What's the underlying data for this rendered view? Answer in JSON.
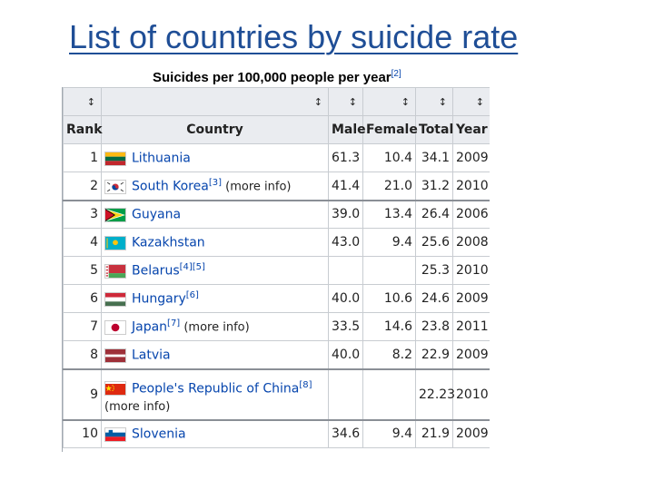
{
  "title": "List of countries by suicide rate",
  "caption": {
    "text": "Suicides per 100,000 people per year",
    "ref": "[2]"
  },
  "columns": [
    "Rank",
    "Country",
    "Male",
    "Female",
    "Total",
    "Year"
  ],
  "sort_arrow": "↕",
  "rows": [
    {
      "rank": "1",
      "country": "Lithuania",
      "refs": "",
      "more": "",
      "male": "61.3",
      "female": "10.4",
      "total": "34.1",
      "year": "2009",
      "flag": "lithuania-flag"
    },
    {
      "rank": "2",
      "country": "South Korea",
      "refs": "[3]",
      "more": " (more info)",
      "male": "41.4",
      "female": "21.0",
      "total": "31.2",
      "year": "2010",
      "flag": "south-korea-flag"
    },
    {
      "rank": "3",
      "country": "Guyana",
      "refs": "",
      "more": "",
      "male": "39.0",
      "female": "13.4",
      "total": "26.4",
      "year": "2006",
      "flag": "guyana-flag"
    },
    {
      "rank": "4",
      "country": "Kazakhstan",
      "refs": "",
      "more": "",
      "male": "43.0",
      "female": "9.4",
      "total": "25.6",
      "year": "2008",
      "flag": "kazakhstan-flag"
    },
    {
      "rank": "5",
      "country": "Belarus",
      "refs": "[4][5]",
      "more": "",
      "male": "",
      "female": "",
      "total": "25.3",
      "year": "2010",
      "flag": "belarus-flag"
    },
    {
      "rank": "6",
      "country": "Hungary",
      "refs": "[6]",
      "more": "",
      "male": "40.0",
      "female": "10.6",
      "total": "24.6",
      "year": "2009",
      "flag": "hungary-flag"
    },
    {
      "rank": "7",
      "country": "Japan",
      "refs": "[7]",
      "more": " (more info)",
      "male": "33.5",
      "female": "14.6",
      "total": "23.8",
      "year": "2011",
      "flag": "japan-flag"
    },
    {
      "rank": "8",
      "country": "Latvia",
      "refs": "",
      "more": "",
      "male": "40.0",
      "female": "8.2",
      "total": "22.9",
      "year": "2009",
      "flag": "latvia-flag"
    },
    {
      "rank": "9",
      "country": "People's Republic of China",
      "refs": "[8]",
      "more": "(more info)",
      "male": "",
      "female": "",
      "total": "22.23",
      "year": "2010",
      "flag": "china-flag"
    },
    {
      "rank": "10",
      "country": "Slovenia",
      "refs": "",
      "more": "",
      "male": "34.6",
      "female": "9.4",
      "total": "21.9",
      "year": "2009",
      "flag": "slovenia-flag"
    }
  ],
  "colors": {
    "title": "#1f4e96",
    "link": "#0645ad",
    "header_bg": "#eaecf0"
  }
}
